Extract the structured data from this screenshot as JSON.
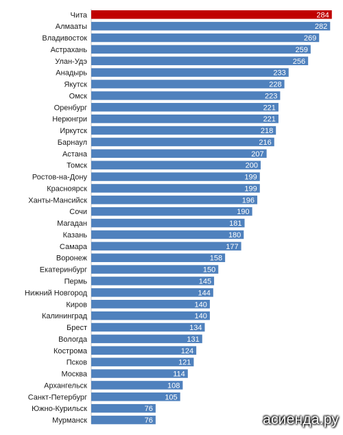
{
  "chart_data": {
    "type": "bar",
    "orientation": "horizontal",
    "categories": [
      "Чита",
      "Алмааты",
      "Владивосток",
      "Астрахань",
      "Улан-Удэ",
      "Анадырь",
      "Якутск",
      "Омск",
      "Оренбург",
      "Нерюнгри",
      "Иркутск",
      "Барнаул",
      "Астана",
      "Томск",
      "Ростов-на-Дону",
      "Красноярск",
      "Ханты-Мансийск",
      "Сочи",
      "Магадан",
      "Казань",
      "Самара",
      "Воронеж",
      "Екатеринбург",
      "Пермь",
      "Нижний Новгород",
      "Киров",
      "Калининград",
      "Брест",
      "Вологда",
      "Кострома",
      "Псков",
      "Москва",
      "Архангельск",
      "Санкт-Петербург",
      "Южно-Курильск",
      "Мурманск"
    ],
    "values": [
      284,
      282,
      269,
      259,
      256,
      233,
      228,
      223,
      221,
      221,
      218,
      216,
      207,
      200,
      199,
      199,
      196,
      190,
      181,
      180,
      177,
      158,
      150,
      145,
      144,
      140,
      140,
      134,
      131,
      124,
      121,
      114,
      108,
      105,
      76,
      76
    ],
    "highlight_index": 0,
    "colors": {
      "bar": "#4f81bd",
      "highlight": "#c00000",
      "value_text": "#ffffff"
    },
    "grid": false,
    "legend": "none"
  },
  "watermark": "асиенда.ру"
}
